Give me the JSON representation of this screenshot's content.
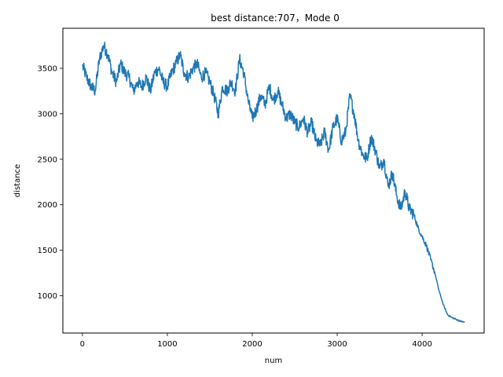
{
  "chart_data": {
    "type": "line",
    "title": "best distance:707，Mode 0",
    "xlabel": "num",
    "ylabel": "distance",
    "xlim": [
      -230,
      4730
    ],
    "ylim": [
      590,
      3940
    ],
    "xticks": [
      0,
      1000,
      2000,
      3000,
      4000
    ],
    "yticks": [
      1000,
      1500,
      2000,
      2500,
      3000,
      3500
    ],
    "xtick_labels": [
      "0",
      "1000",
      "2000",
      "3000",
      "4000"
    ],
    "ytick_labels": [
      "1000",
      "1500",
      "2000",
      "2500",
      "3000",
      "3500"
    ],
    "grid": false,
    "legend": null,
    "series_color": "#1f77b4",
    "series": [
      {
        "x": [
          0,
          50,
          100,
          150,
          200,
          250,
          300,
          350,
          400,
          450,
          500,
          550,
          600,
          650,
          700,
          750,
          800,
          850,
          900,
          950,
          1000,
          1050,
          1100,
          1150,
          1200,
          1250,
          1300,
          1350,
          1400,
          1450,
          1500,
          1550,
          1600,
          1650,
          1700,
          1750,
          1800,
          1850,
          1900,
          1950,
          2000,
          2050,
          2100,
          2150,
          2200,
          2250,
          2300,
          2350,
          2400,
          2450,
          2500,
          2550,
          2600,
          2650,
          2700,
          2750,
          2800,
          2850,
          2900,
          2950,
          3000,
          3050,
          3100,
          3150,
          3200,
          3250,
          3300,
          3350,
          3400,
          3450,
          3500,
          3550,
          3600,
          3650,
          3700,
          3750,
          3800,
          3850,
          3900,
          3950,
          4000,
          4050,
          4100,
          4150,
          4200,
          4250,
          4300,
          4350,
          4400,
          4450,
          4500
        ],
        "y": [
          3530,
          3400,
          3300,
          3250,
          3600,
          3750,
          3650,
          3450,
          3350,
          3550,
          3450,
          3400,
          3250,
          3350,
          3300,
          3400,
          3250,
          3450,
          3500,
          3350,
          3300,
          3450,
          3550,
          3650,
          3450,
          3400,
          3500,
          3550,
          3400,
          3450,
          3350,
          3200,
          3000,
          3300,
          3250,
          3350,
          3250,
          3600,
          3450,
          3150,
          2950,
          3050,
          3200,
          3100,
          3300,
          3150,
          3250,
          3100,
          2950,
          3000,
          2900,
          2850,
          2950,
          2800,
          2900,
          2700,
          2650,
          2800,
          2600,
          2850,
          2950,
          2700,
          2800,
          3200,
          3000,
          2700,
          2550,
          2500,
          2750,
          2600,
          2400,
          2500,
          2200,
          2350,
          2100,
          1950,
          2150,
          1950,
          1900,
          1750,
          1650,
          1550,
          1400,
          1250,
          1050,
          900,
          790,
          760,
          740,
          720,
          707
        ]
      }
    ]
  }
}
